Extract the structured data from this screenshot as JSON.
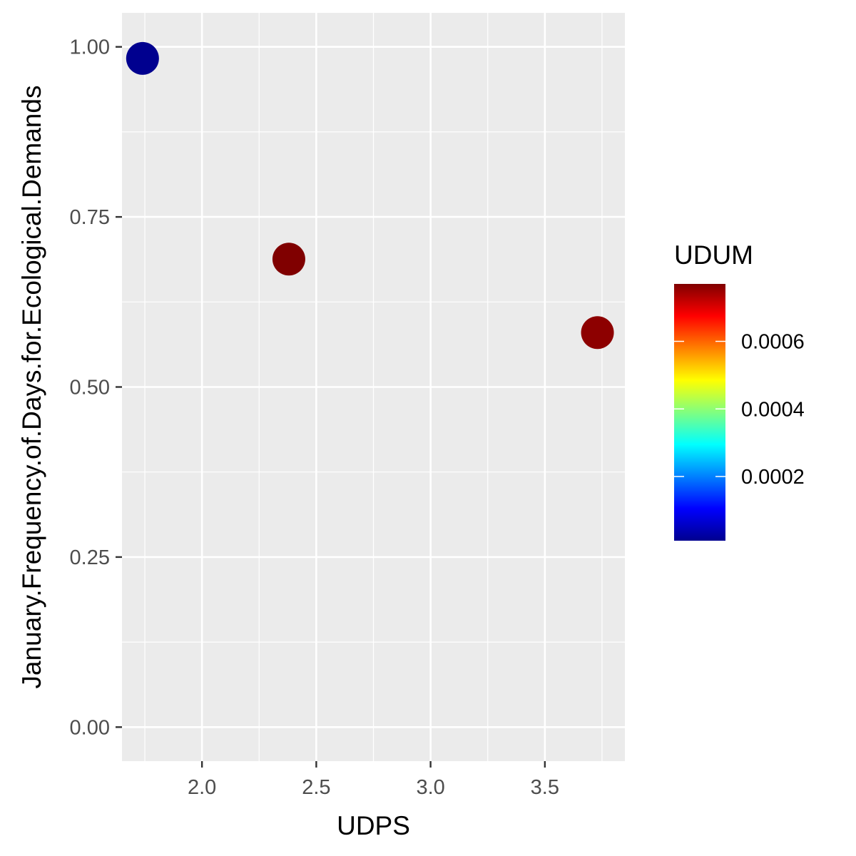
{
  "chart_data": {
    "type": "scatter",
    "xlabel": "UDPS",
    "ylabel": "January.Frequency.of.Days.for.Ecological.Demands",
    "xlim": [
      1.65,
      3.85
    ],
    "ylim": [
      -0.05,
      1.05
    ],
    "x_ticks": [
      2.0,
      2.5,
      3.0,
      3.5
    ],
    "x_tick_labels": [
      "2.0",
      "2.5",
      "3.0",
      "3.5"
    ],
    "y_ticks": [
      0.0,
      0.25,
      0.5,
      0.75,
      1.0
    ],
    "y_tick_labels": [
      "0.00",
      "0.25",
      "0.50",
      "0.75",
      "1.00"
    ],
    "grid": true,
    "points": [
      {
        "x": 1.74,
        "y": 0.983,
        "color_value": 1e-05
      },
      {
        "x": 2.38,
        "y": 0.688,
        "color_value": 0.00077
      },
      {
        "x": 3.73,
        "y": 0.58,
        "color_value": 0.00076
      }
    ],
    "color_legend": {
      "title": "UDUM",
      "position": "right",
      "range": [
        1e-05,
        0.00077
      ],
      "ticks": [
        0.0002,
        0.0004,
        0.0006
      ],
      "tick_labels": [
        "0.0002",
        "0.0004",
        "0.0006"
      ],
      "palette": [
        "#00008F",
        "#0000FF",
        "#0080FF",
        "#00FFFF",
        "#80FF80",
        "#FFFF00",
        "#FF8000",
        "#FF0000",
        "#800000"
      ]
    },
    "colors": {
      "panel_background": "#EBEBEB",
      "grid_major": "#FFFFFF",
      "tick_text": "#4D4D4D"
    }
  }
}
